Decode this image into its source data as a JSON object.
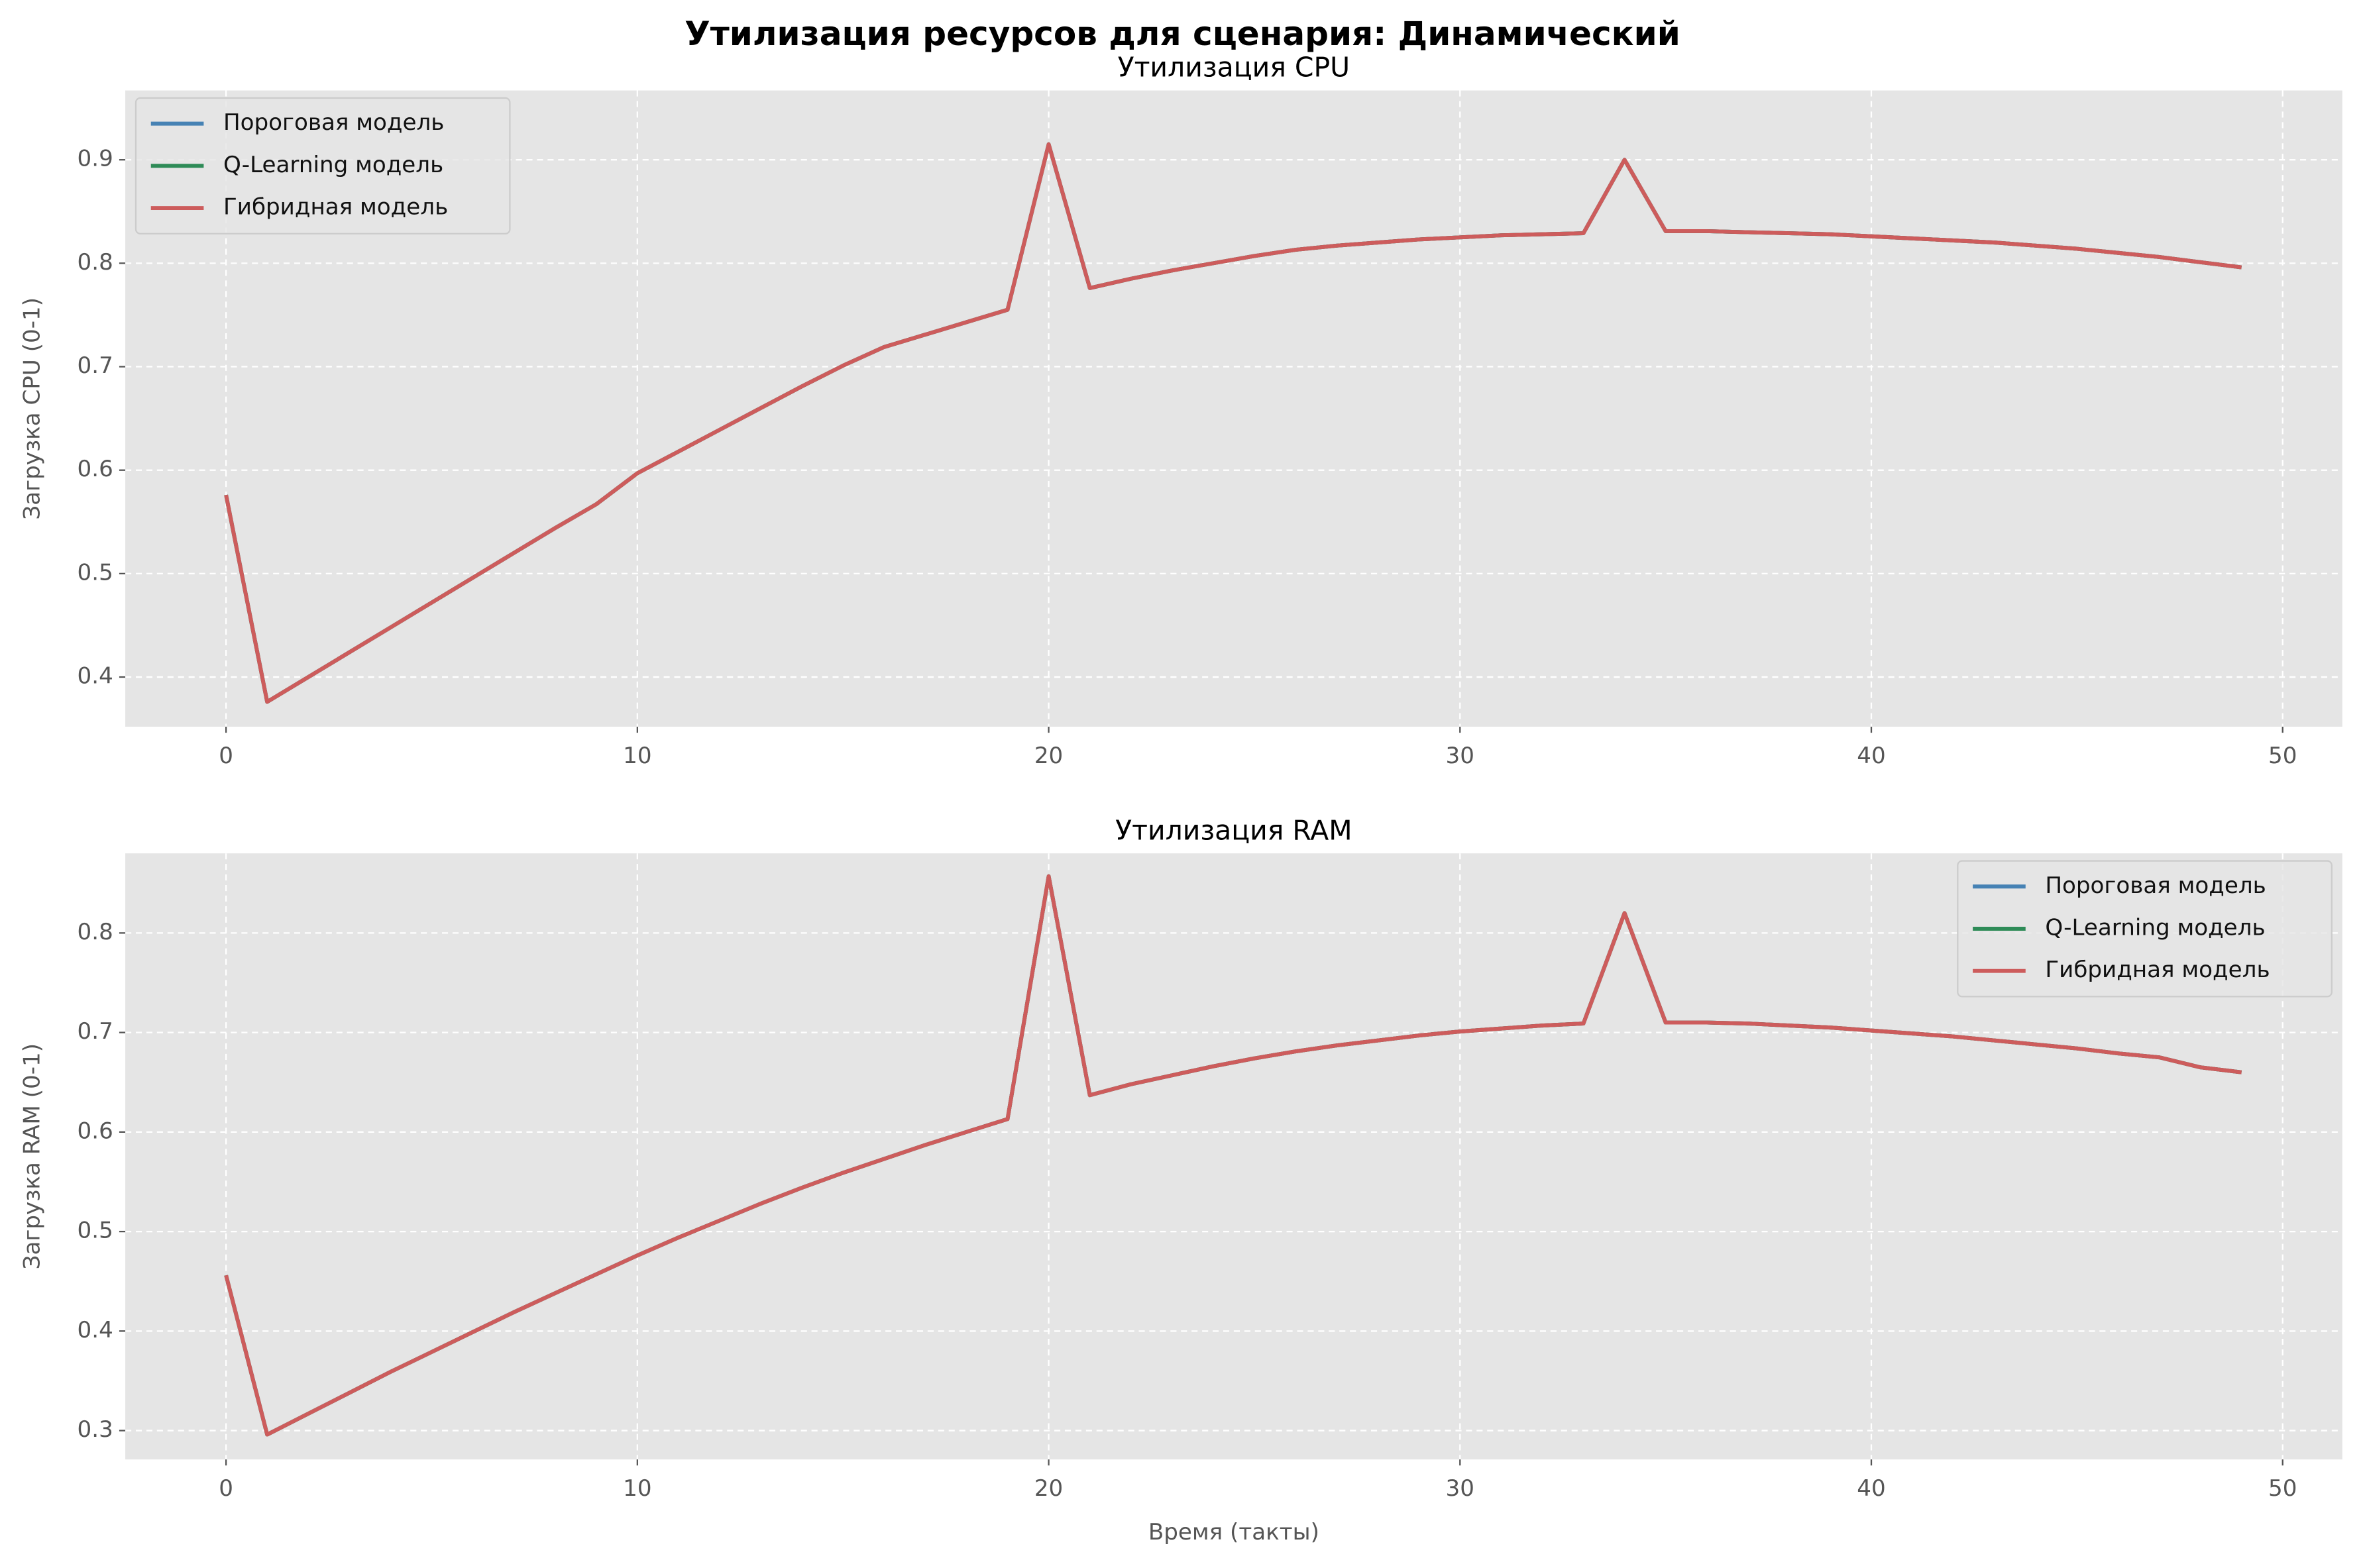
{
  "title": "Утилизация ресурсов для сценария: Динамический",
  "chart_data": [
    {
      "type": "line",
      "title": "Утилизация CPU",
      "ylabel": "Загрузка CPU (0-1)",
      "legend": "upper left",
      "grid": true,
      "x": [
        0,
        1,
        2,
        3,
        4,
        5,
        6,
        7,
        8,
        9,
        10,
        11,
        12,
        13,
        14,
        15,
        16,
        17,
        18,
        19,
        20,
        21,
        22,
        23,
        24,
        25,
        26,
        27,
        28,
        29,
        30,
        31,
        32,
        33,
        34,
        35,
        36,
        37,
        38,
        39,
        40,
        41,
        42,
        43,
        44,
        45,
        46,
        47,
        48,
        49
      ],
      "xlim": [
        -2.45,
        51.45
      ],
      "xticks": [
        0,
        10,
        20,
        30,
        40,
        50
      ],
      "ylim": [
        0.352,
        0.967
      ],
      "yticks": [
        0.4,
        0.5,
        0.6,
        0.7,
        0.8,
        0.9
      ],
      "series": [
        {
          "name": "Пороговая модель",
          "color": "#4682b4",
          "values": [
            0.576,
            0.376,
            0.4,
            0.424,
            0.448,
            0.472,
            0.496,
            0.52,
            0.544,
            0.567,
            0.597,
            0.618,
            0.639,
            0.66,
            0.681,
            0.701,
            0.719,
            0.731,
            0.743,
            0.755,
            0.915,
            0.776,
            0.785,
            0.793,
            0.8,
            0.807,
            0.813,
            0.817,
            0.82,
            0.823,
            0.825,
            0.827,
            0.828,
            0.829,
            0.9,
            0.831,
            0.831,
            0.83,
            0.829,
            0.828,
            0.826,
            0.824,
            0.822,
            0.82,
            0.817,
            0.814,
            0.81,
            0.806,
            0.801,
            0.796
          ]
        },
        {
          "name": "Q-Learning модель",
          "color": "#2e8b57",
          "values": [
            0.576,
            0.376,
            0.4,
            0.424,
            0.448,
            0.472,
            0.496,
            0.52,
            0.544,
            0.567,
            0.597,
            0.618,
            0.639,
            0.66,
            0.681,
            0.701,
            0.719,
            0.731,
            0.743,
            0.755,
            0.915,
            0.776,
            0.785,
            0.793,
            0.8,
            0.807,
            0.813,
            0.817,
            0.82,
            0.823,
            0.825,
            0.827,
            0.828,
            0.829,
            0.9,
            0.831,
            0.831,
            0.83,
            0.829,
            0.828,
            0.826,
            0.824,
            0.822,
            0.82,
            0.817,
            0.814,
            0.81,
            0.806,
            0.801,
            0.796
          ]
        },
        {
          "name": "Гибридная модель",
          "color": "#cd5c5c",
          "values": [
            0.576,
            0.376,
            0.4,
            0.424,
            0.448,
            0.472,
            0.496,
            0.52,
            0.544,
            0.567,
            0.597,
            0.618,
            0.639,
            0.66,
            0.681,
            0.701,
            0.719,
            0.731,
            0.743,
            0.755,
            0.915,
            0.776,
            0.785,
            0.793,
            0.8,
            0.807,
            0.813,
            0.817,
            0.82,
            0.823,
            0.825,
            0.827,
            0.828,
            0.829,
            0.9,
            0.831,
            0.831,
            0.83,
            0.829,
            0.828,
            0.826,
            0.824,
            0.822,
            0.82,
            0.817,
            0.814,
            0.81,
            0.806,
            0.801,
            0.796
          ]
        }
      ]
    },
    {
      "type": "line",
      "title": "Утилизация RAM",
      "xlabel": "Время (такты)",
      "ylabel": "Загрузка RAM (0-1)",
      "legend": "upper right",
      "grid": true,
      "x": [
        0,
        1,
        2,
        3,
        4,
        5,
        6,
        7,
        8,
        9,
        10,
        11,
        12,
        13,
        14,
        15,
        16,
        17,
        18,
        19,
        20,
        21,
        22,
        23,
        24,
        25,
        26,
        27,
        28,
        29,
        30,
        31,
        32,
        33,
        34,
        35,
        36,
        37,
        38,
        39,
        40,
        41,
        42,
        43,
        44,
        45,
        46,
        47,
        48,
        49
      ],
      "xlim": [
        -2.45,
        51.45
      ],
      "xticks": [
        0,
        10,
        20,
        30,
        40,
        50
      ],
      "ylim": [
        0.271,
        0.88
      ],
      "yticks": [
        0.3,
        0.4,
        0.5,
        0.6,
        0.7,
        0.8
      ],
      "series": [
        {
          "name": "Пороговая модель",
          "color": "#4682b4",
          "values": [
            0.456,
            0.296,
            0.317,
            0.338,
            0.359,
            0.379,
            0.399,
            0.419,
            0.438,
            0.457,
            0.476,
            0.494,
            0.511,
            0.528,
            0.544,
            0.559,
            0.573,
            0.587,
            0.6,
            0.613,
            0.857,
            0.637,
            0.648,
            0.657,
            0.666,
            0.674,
            0.681,
            0.687,
            0.692,
            0.697,
            0.701,
            0.704,
            0.707,
            0.709,
            0.82,
            0.71,
            0.71,
            0.709,
            0.707,
            0.705,
            0.702,
            0.699,
            0.696,
            0.692,
            0.688,
            0.684,
            0.679,
            0.675,
            0.665,
            0.66
          ]
        },
        {
          "name": "Q-Learning модель",
          "color": "#2e8b57",
          "values": [
            0.456,
            0.296,
            0.317,
            0.338,
            0.359,
            0.379,
            0.399,
            0.419,
            0.438,
            0.457,
            0.476,
            0.494,
            0.511,
            0.528,
            0.544,
            0.559,
            0.573,
            0.587,
            0.6,
            0.613,
            0.857,
            0.637,
            0.648,
            0.657,
            0.666,
            0.674,
            0.681,
            0.687,
            0.692,
            0.697,
            0.701,
            0.704,
            0.707,
            0.709,
            0.82,
            0.71,
            0.71,
            0.709,
            0.707,
            0.705,
            0.702,
            0.699,
            0.696,
            0.692,
            0.688,
            0.684,
            0.679,
            0.675,
            0.665,
            0.66
          ]
        },
        {
          "name": "Гибридная модель",
          "color": "#cd5c5c",
          "values": [
            0.456,
            0.296,
            0.317,
            0.338,
            0.359,
            0.379,
            0.399,
            0.419,
            0.438,
            0.457,
            0.476,
            0.494,
            0.511,
            0.528,
            0.544,
            0.559,
            0.573,
            0.587,
            0.6,
            0.613,
            0.857,
            0.637,
            0.648,
            0.657,
            0.666,
            0.674,
            0.681,
            0.687,
            0.692,
            0.697,
            0.701,
            0.704,
            0.707,
            0.709,
            0.82,
            0.71,
            0.71,
            0.709,
            0.707,
            0.705,
            0.702,
            0.699,
            0.696,
            0.692,
            0.688,
            0.684,
            0.679,
            0.675,
            0.665,
            0.66
          ]
        }
      ]
    }
  ]
}
